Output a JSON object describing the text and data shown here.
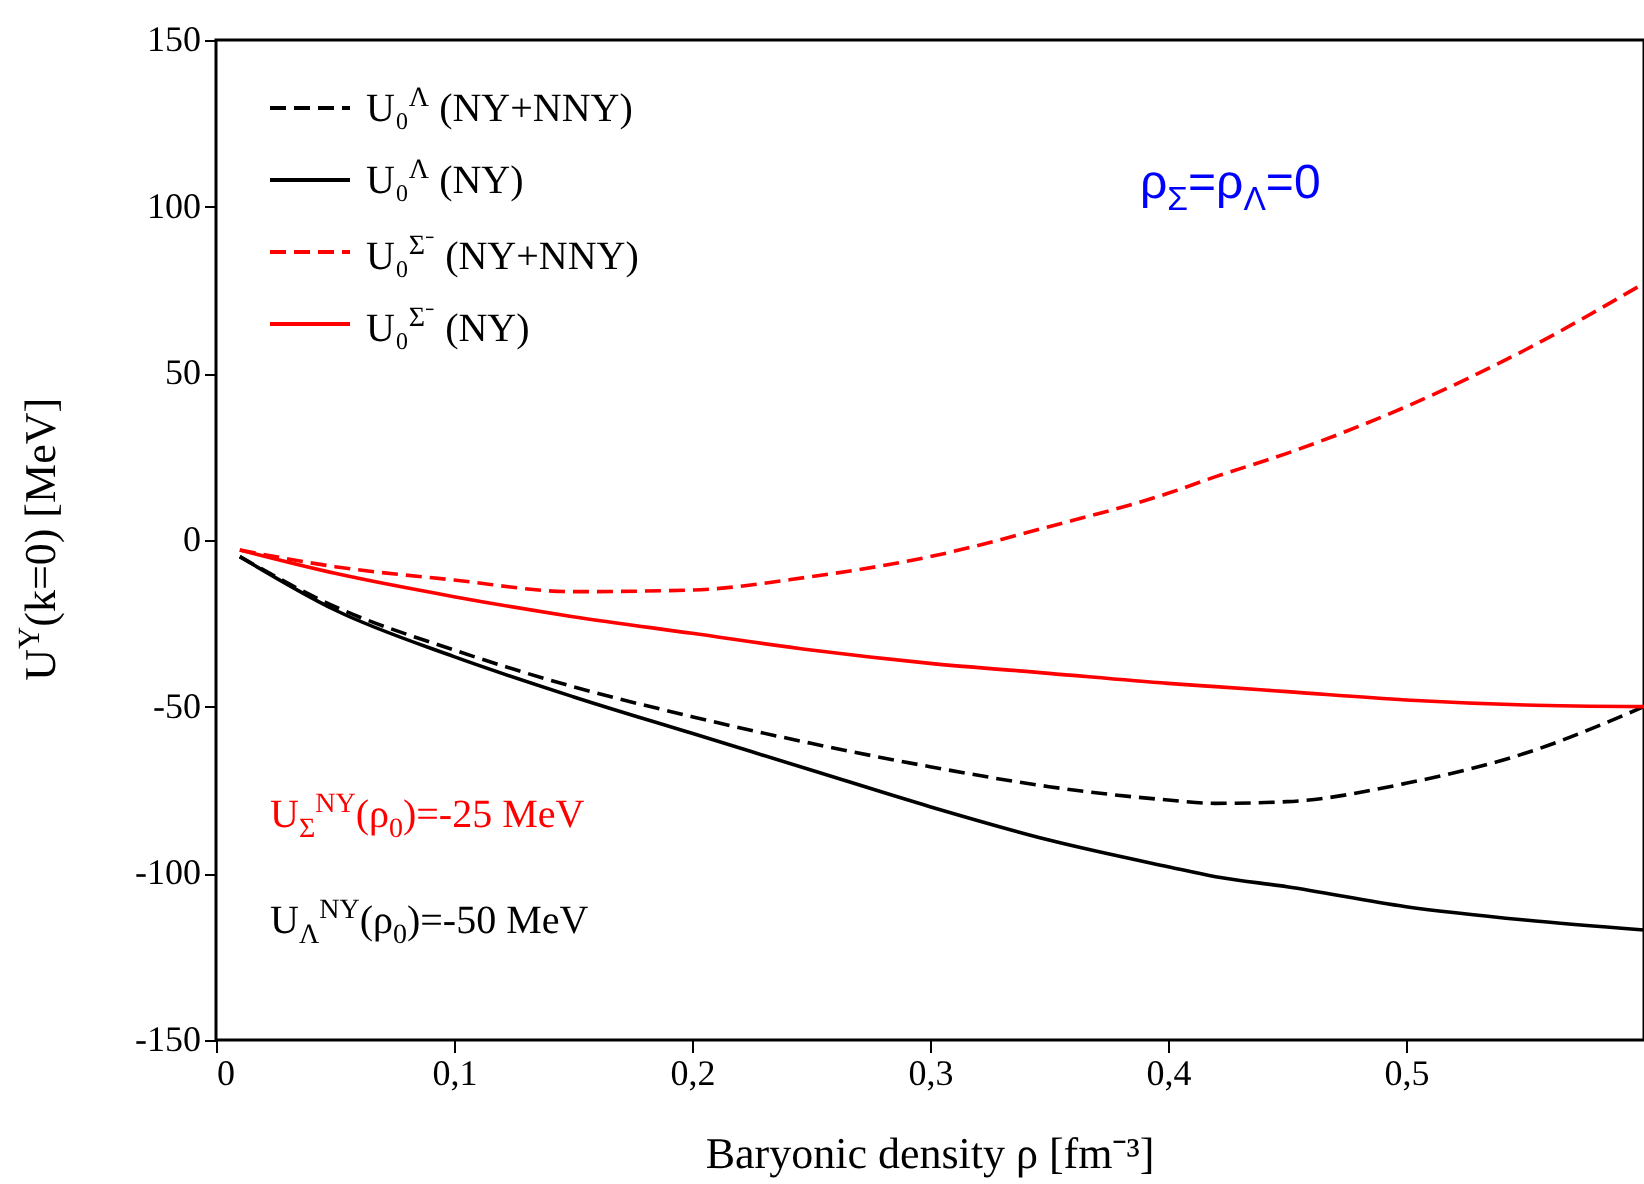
{
  "chart_data": {
    "type": "line",
    "xlabel": "Baryonic density ρ [fm⁻³]",
    "ylabel": "U$^{Y}$(k=0) [MeV]",
    "x": [
      0.01,
      0.05,
      0.1,
      0.15,
      0.2,
      0.25,
      0.3,
      0.35,
      0.4,
      0.42,
      0.45,
      0.5,
      0.55,
      0.6
    ],
    "series": [
      {
        "name": "U₀$^{Λ}$ (NY+NNY)",
        "color": "#000000",
        "line_style": "dashed",
        "values": [
          -5,
          -20,
          -33,
          -44,
          -53,
          -61,
          -68,
          -74,
          -78,
          -79,
          -78.5,
          -73,
          -64,
          -50
        ]
      },
      {
        "name": "U₀$^{Λ}$ (NY)",
        "color": "#000000",
        "line_style": "solid",
        "values": [
          -5,
          -21,
          -35,
          -47,
          -58,
          -69,
          -80,
          -90,
          -98,
          -101,
          -104,
          -110,
          -114,
          -117
        ]
      },
      {
        "name": "U₀$^{Σ⁻}$ (NY+NNY)",
        "color": "#ff0000",
        "line_style": "dashed",
        "values": [
          -3,
          -8,
          -12,
          -15.5,
          -15,
          -11,
          -5,
          4,
          14,
          19,
          26,
          40,
          57,
          77
        ]
      },
      {
        "name": "U₀$^{Σ⁻}$ (NY)",
        "color": "#ff0000",
        "line_style": "solid",
        "values": [
          -3,
          -10,
          -17,
          -23,
          -28,
          -33,
          -37,
          -40,
          -43,
          -44,
          -45.5,
          -48,
          -49.5,
          -50
        ]
      }
    ],
    "xlim": [
      0,
      0.6
    ],
    "xticks": [
      0,
      {
        "value": 0.1,
        "label": "0,1"
      },
      {
        "value": 0.2,
        "label": "0,2"
      },
      {
        "value": 0.3,
        "label": "0,3"
      },
      {
        "value": 0.4,
        "label": "0,4"
      },
      {
        "value": 0.5,
        "label": "0,5"
      }
    ],
    "ylim": [
      -150,
      150
    ],
    "yticks": [
      -150,
      -100,
      -50,
      0,
      50,
      100,
      150
    ],
    "grid": false,
    "legend": "top left",
    "annotations": [
      "ρ$_{Σ}$=ρ$_{Λ}$=0",
      "U$_{Σ}$$^{NY}$(ρ$_{0}$)=-25 MeV",
      "U$_{Λ}$$^{NY}$(ρ$_{0}$)=-50 MeV"
    ]
  }
}
